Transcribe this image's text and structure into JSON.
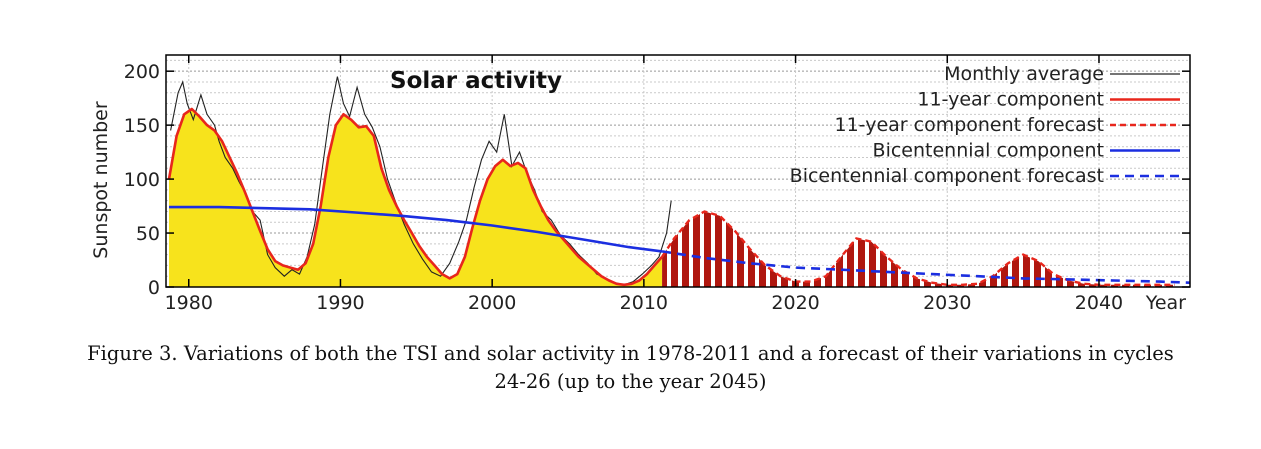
{
  "chart_data": {
    "type": "area",
    "title": "Solar activity",
    "xlabel": "Year",
    "ylabel": "Sunspot number",
    "xlim": [
      1978.5,
      2046
    ],
    "ylim": [
      0,
      215
    ],
    "xticks": [
      1980,
      1990,
      2000,
      2010,
      2020,
      2030,
      2040
    ],
    "yticks": [
      0,
      50,
      100,
      150,
      200
    ],
    "grid": true,
    "legend_position": "top-right",
    "series": [
      {
        "name": "Monthly average",
        "color": "#222222",
        "style": "thin-line",
        "x": [
          1978.8,
          1979.3,
          1979.6,
          1979.9,
          1980.3,
          1980.8,
          1981.2,
          1981.7,
          1982.0,
          1982.4,
          1982.9,
          1983.3,
          1983.8,
          1984.2,
          1984.7,
          1985.2,
          1985.7,
          1986.3,
          1986.8,
          1987.3,
          1987.8,
          1988.3,
          1988.8,
          1989.3,
          1989.8,
          1990.2,
          1990.6,
          1991.1,
          1991.6,
          1992.1,
          1992.6,
          1993.1,
          1993.6,
          1994.2,
          1994.8,
          1995.4,
          1996.0,
          1996.6,
          1997.2,
          1997.8,
          1998.3,
          1998.8,
          1999.3,
          1999.8,
          2000.3,
          2000.8,
          2001.3,
          2001.8,
          2002.3,
          2002.8,
          2003.3,
          2003.9,
          2004.5,
          2005.1,
          2005.7,
          2006.3,
          2006.9,
          2007.5,
          2008.1,
          2008.7,
          2009.3,
          2009.9,
          2010.5,
          2011.0,
          2011.5,
          2011.8
        ],
        "values": [
          145,
          180,
          190,
          170,
          155,
          178,
          160,
          150,
          135,
          120,
          110,
          98,
          85,
          70,
          62,
          30,
          18,
          10,
          16,
          12,
          28,
          58,
          110,
          160,
          195,
          170,
          158,
          185,
          160,
          148,
          130,
          100,
          80,
          58,
          40,
          26,
          14,
          10,
          22,
          42,
          62,
          92,
          118,
          135,
          125,
          160,
          112,
          125,
          105,
          90,
          70,
          62,
          48,
          40,
          30,
          22,
          12,
          8,
          4,
          2,
          5,
          12,
          20,
          28,
          50,
          80
        ]
      },
      {
        "name": "11-year component",
        "color": "#e8261c",
        "style": "solid",
        "x": [
          1978.7,
          1979.2,
          1979.7,
          1980.2,
          1980.7,
          1981.2,
          1981.7,
          1982.2,
          1982.7,
          1983.2,
          1983.7,
          1984.2,
          1984.7,
          1985.2,
          1985.7,
          1986.2,
          1986.7,
          1987.2,
          1987.7,
          1988.2,
          1988.7,
          1989.2,
          1989.7,
          1990.2,
          1990.7,
          1991.2,
          1991.7,
          1992.2,
          1992.7,
          1993.2,
          1993.7,
          1994.2,
          1994.7,
          1995.2,
          1995.7,
          1996.2,
          1996.7,
          1997.2,
          1997.7,
          1998.2,
          1998.7,
          1999.2,
          1999.7,
          2000.2,
          2000.7,
          2001.2,
          2001.7,
          2002.2,
          2002.7,
          2003.2,
          2003.7,
          2004.2,
          2004.7,
          2005.2,
          2005.7,
          2006.2,
          2006.7,
          2007.2,
          2007.7,
          2008.2,
          2008.7,
          2009.2,
          2009.7,
          2010.2,
          2010.7,
          2011.2
        ],
        "values": [
          100,
          140,
          160,
          165,
          158,
          150,
          145,
          135,
          120,
          105,
          88,
          70,
          52,
          35,
          24,
          20,
          18,
          16,
          22,
          40,
          75,
          120,
          150,
          160,
          155,
          148,
          149,
          140,
          110,
          90,
          75,
          62,
          50,
          38,
          28,
          20,
          12,
          8,
          12,
          28,
          55,
          80,
          100,
          112,
          118,
          112,
          115,
          110,
          90,
          75,
          62,
          52,
          44,
          36,
          28,
          22,
          16,
          10,
          6,
          3,
          2,
          3,
          6,
          12,
          20,
          28
        ]
      },
      {
        "name": "11-year component forecast",
        "color": "#e8261c",
        "style": "dashed",
        "x": [
          2011.2,
          2012,
          2013,
          2014,
          2015,
          2016,
          2017,
          2018,
          2019,
          2020,
          2021,
          2022,
          2023,
          2024,
          2025,
          2026,
          2027,
          2028,
          2029,
          2030,
          2031,
          2032,
          2033,
          2034,
          2035,
          2036,
          2037,
          2038,
          2039,
          2040,
          2041,
          2042,
          2043,
          2044,
          2045
        ],
        "values": [
          28,
          45,
          62,
          70,
          66,
          52,
          35,
          20,
          10,
          5,
          5,
          10,
          28,
          45,
          42,
          28,
          16,
          8,
          4,
          2,
          2,
          3,
          10,
          22,
          30,
          24,
          12,
          6,
          3,
          2,
          2,
          2,
          2,
          2,
          2
        ]
      },
      {
        "name": "Bicentennial component",
        "color": "#1b2ee0",
        "style": "solid",
        "x": [
          1978.7,
          1982,
          1985,
          1988,
          1991,
          1994,
          1997,
          2000,
          2003,
          2006,
          2009,
          2011.2
        ],
        "values": [
          74,
          74,
          73,
          72,
          69,
          66,
          62,
          57,
          51,
          44,
          37,
          33
        ]
      },
      {
        "name": "Bicentennial component forecast",
        "color": "#1b2ee0",
        "style": "dashed",
        "x": [
          2011.2,
          2014,
          2017,
          2020,
          2023,
          2026,
          2029,
          2032,
          2035,
          2038,
          2041,
          2044,
          2046
        ],
        "values": [
          33,
          27,
          22,
          18,
          16,
          14,
          12,
          10,
          8,
          7,
          6,
          5,
          4
        ]
      }
    ]
  },
  "caption": {
    "line1": "Figure 3. Variations of both the TSI and solar activity in 1978-2011 and a forecast of their variations in cycles",
    "line2": "24-26 (up to the year 2045)"
  }
}
